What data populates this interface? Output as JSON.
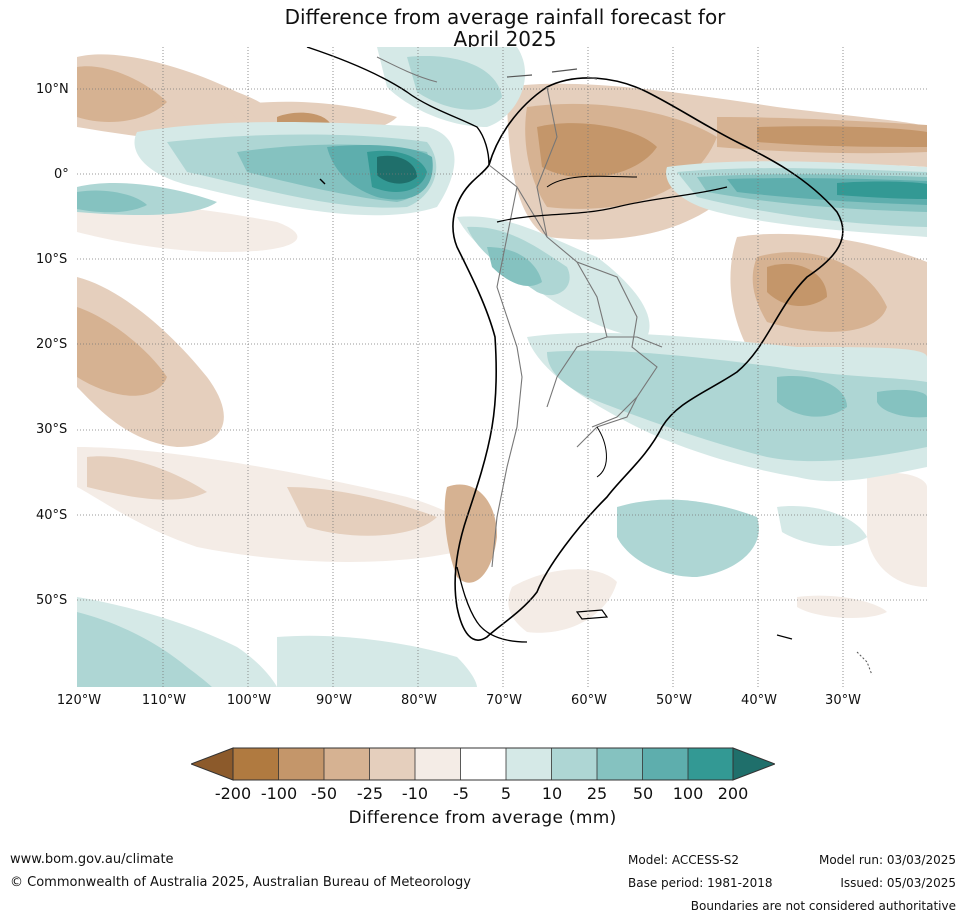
{
  "title": {
    "line1": "Difference from average rainfall forecast for",
    "line2": "April 2025"
  },
  "map": {
    "region": "South America",
    "lat_labels": [
      "10°N",
      "0°",
      "10°S",
      "20°S",
      "30°S",
      "40°S",
      "50°S"
    ],
    "lon_labels": [
      "120°W",
      "110°W",
      "100°W",
      "90°W",
      "80°W",
      "70°W",
      "60°W",
      "50°W",
      "40°W",
      "30°W"
    ],
    "gridlines": true
  },
  "colorbar": {
    "title": "Difference from average (mm)",
    "ticks": [
      "-200",
      "-100",
      "-50",
      "-25",
      "-10",
      "-5",
      "5",
      "10",
      "25",
      "50",
      "100",
      "200"
    ],
    "colors": [
      "#8c5a2b",
      "#b07a40",
      "#c4966a",
      "#d6b292",
      "#e5cfbd",
      "#f4ece6",
      "#ffffff",
      "#d5e9e7",
      "#aed6d4",
      "#85c2c0",
      "#5eaead",
      "#339994",
      "#1f6f6b"
    ]
  },
  "footer": {
    "url": "www.bom.gov.au/climate",
    "copyright": "© Commonwealth of Australia 2025, Australian Bureau of Meteorology",
    "model": "Model: ACCESS-S2",
    "base_period": "Base period: 1981-2018",
    "model_run": "Model run: 03/03/2025",
    "issued": "Issued: 05/03/2025",
    "disclaimer": "Boundaries are not considered authoritative"
  }
}
